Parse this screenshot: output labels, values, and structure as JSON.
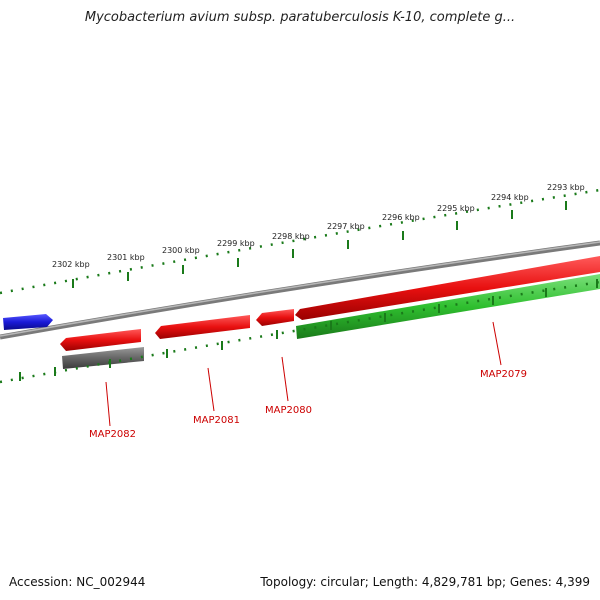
{
  "title": "Mycobacterium avium subsp. paratuberculosis K-10, complete g...",
  "footer": {
    "accession": "Accession: NC_002944",
    "summary": "Topology: circular; Length: 4,829,781 bp; Genes: 4,399"
  },
  "colors": {
    "backbone": "#888888",
    "forward_gene": "#e81010",
    "reverse_gene": "#2aa52a",
    "other_gene": "#555555",
    "blue_gene": "#1a1ad8",
    "ruler_ticks": "#1a7a1a",
    "gene_label": "#cc0000"
  },
  "ruler": {
    "unit": "kbp",
    "ticks": [
      "2293 kbp",
      "2294 kbp",
      "2295 kbp",
      "2296 kbp",
      "2297 kbp",
      "2298 kbp",
      "2299 kbp",
      "2300 kbp",
      "2301 kbp",
      "2302 kbp"
    ]
  },
  "genes": [
    {
      "label": "MAP2079",
      "strand": "reverse",
      "color": "green"
    },
    {
      "label": "MAP2080",
      "strand": "forward",
      "color": "red"
    },
    {
      "label": "MAP2081",
      "strand": "forward",
      "color": "red"
    },
    {
      "label": "MAP2082",
      "strand": "forward",
      "color": "red"
    }
  ]
}
